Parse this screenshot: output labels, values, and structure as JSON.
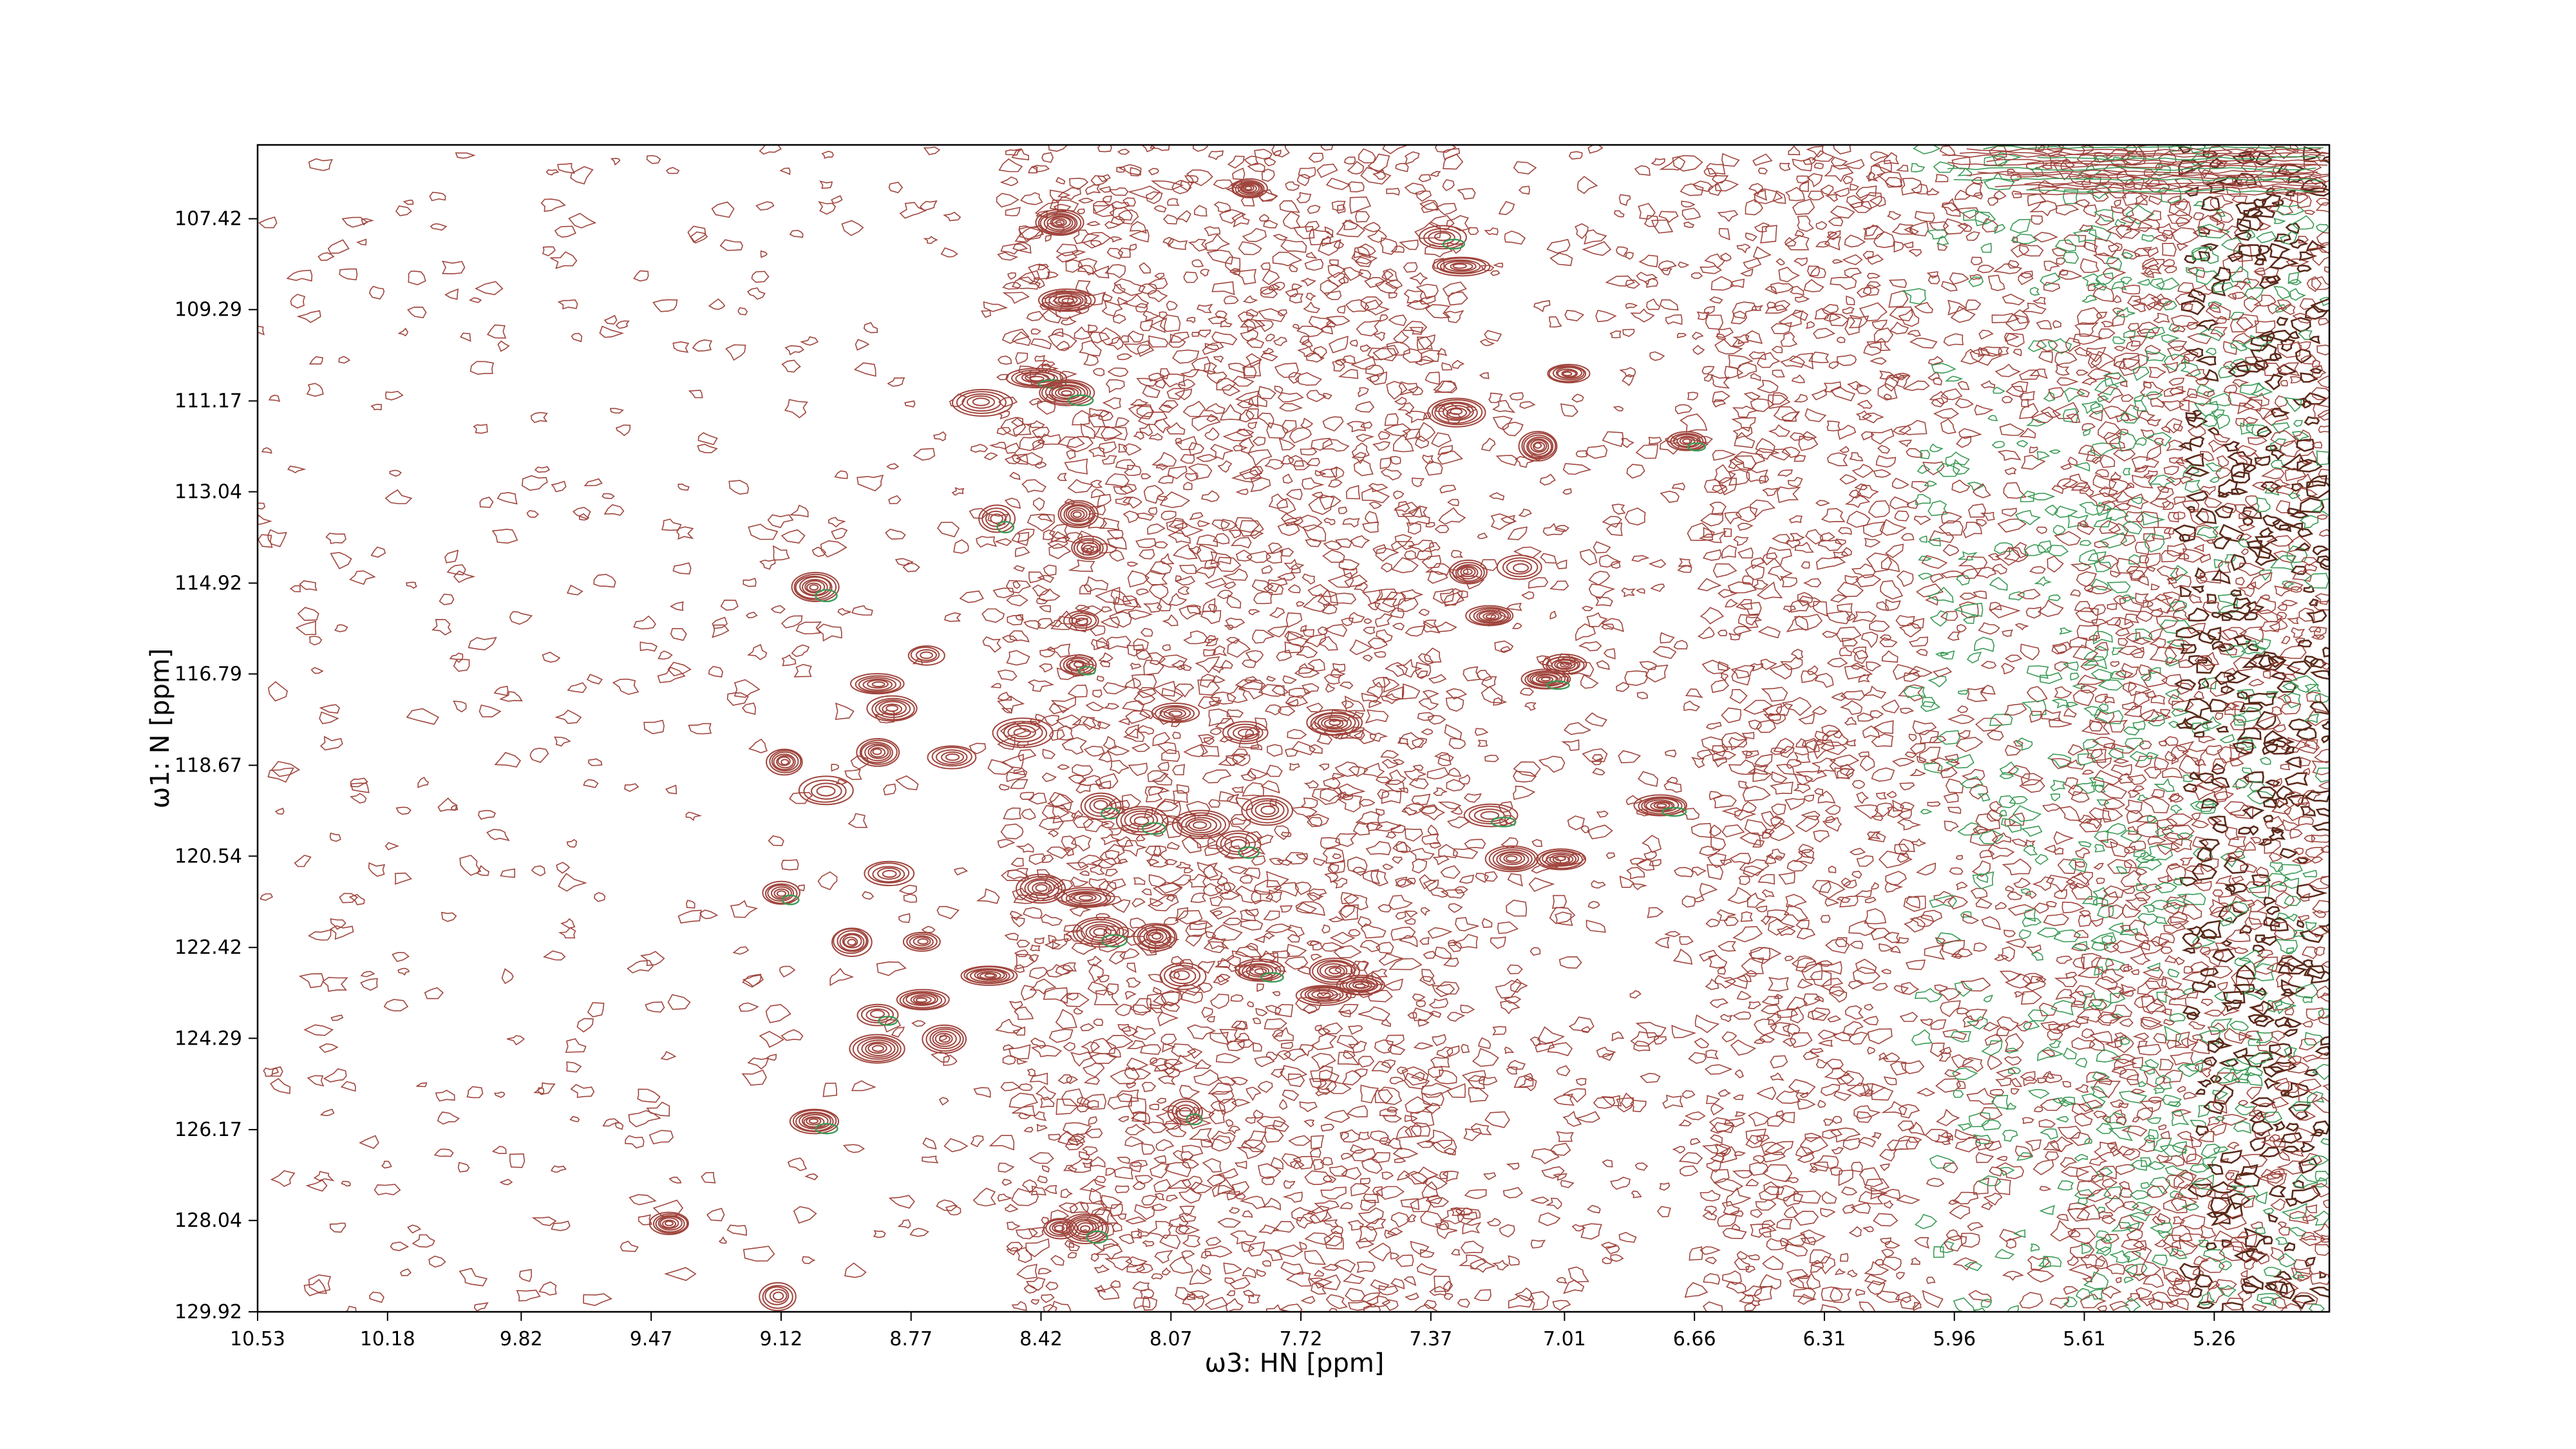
{
  "chart_data": {
    "type": "contour",
    "xlabel": "ω3: HN [ppm]",
    "ylabel": "ω1: N [ppm]",
    "xlim": [
      10.53,
      4.95
    ],
    "ylim": [
      105.9,
      129.92
    ],
    "x_ticks": [
      "10.53",
      "10.18",
      "9.82",
      "9.47",
      "9.12",
      "8.77",
      "8.42",
      "8.07",
      "7.72",
      "7.37",
      "7.01",
      "6.66",
      "6.31",
      "5.96",
      "5.61",
      "5.26"
    ],
    "y_ticks": [
      "107.42",
      "109.29",
      "111.17",
      "113.04",
      "114.92",
      "116.79",
      "118.67",
      "120.54",
      "122.42",
      "124.29",
      "126.17",
      "128.04",
      "129.92"
    ],
    "colors": {
      "positive": "#a0453d",
      "negative": "#3a9a55",
      "dark": "#5a2a1a"
    },
    "series": [
      {
        "name": "",
        "peaks": [
          {
            "x": 8.37,
            "y": 107.5
          },
          {
            "x": 7.86,
            "y": 106.8
          },
          {
            "x": 7.34,
            "y": 107.8
          },
          {
            "x": 7.29,
            "y": 108.4
          },
          {
            "x": 8.35,
            "y": 109.1
          },
          {
            "x": 8.43,
            "y": 110.7
          },
          {
            "x": 8.35,
            "y": 111.0
          },
          {
            "x": 7.3,
            "y": 111.4
          },
          {
            "x": 7.08,
            "y": 112.1
          },
          {
            "x": 7.0,
            "y": 110.6
          },
          {
            "x": 6.68,
            "y": 112.0
          },
          {
            "x": 8.58,
            "y": 111.2
          },
          {
            "x": 8.54,
            "y": 113.6
          },
          {
            "x": 8.32,
            "y": 113.5
          },
          {
            "x": 8.29,
            "y": 114.2
          },
          {
            "x": 7.27,
            "y": 114.7
          },
          {
            "x": 7.13,
            "y": 114.6
          },
          {
            "x": 7.21,
            "y": 115.6
          },
          {
            "x": 9.03,
            "y": 115.0
          },
          {
            "x": 8.31,
            "y": 115.7
          },
          {
            "x": 8.73,
            "y": 116.4
          },
          {
            "x": 8.32,
            "y": 116.6
          },
          {
            "x": 8.86,
            "y": 117.0
          },
          {
            "x": 8.82,
            "y": 117.5
          },
          {
            "x": 7.06,
            "y": 116.9
          },
          {
            "x": 7.01,
            "y": 116.6
          },
          {
            "x": 8.47,
            "y": 118.0
          },
          {
            "x": 8.06,
            "y": 117.6
          },
          {
            "x": 7.87,
            "y": 118.0
          },
          {
            "x": 7.63,
            "y": 117.8
          },
          {
            "x": 9.11,
            "y": 118.6
          },
          {
            "x": 8.86,
            "y": 118.4
          },
          {
            "x": 8.66,
            "y": 118.5
          },
          {
            "x": 9.0,
            "y": 119.2
          },
          {
            "x": 8.26,
            "y": 119.5
          },
          {
            "x": 8.15,
            "y": 119.8
          },
          {
            "x": 7.99,
            "y": 119.9
          },
          {
            "x": 7.89,
            "y": 120.3
          },
          {
            "x": 7.81,
            "y": 119.6
          },
          {
            "x": 7.21,
            "y": 119.7
          },
          {
            "x": 7.15,
            "y": 120.6
          },
          {
            "x": 7.02,
            "y": 120.6
          },
          {
            "x": 6.75,
            "y": 119.5
          },
          {
            "x": 8.83,
            "y": 120.9
          },
          {
            "x": 8.42,
            "y": 121.2
          },
          {
            "x": 8.3,
            "y": 121.4
          },
          {
            "x": 8.26,
            "y": 122.1
          },
          {
            "x": 8.11,
            "y": 122.2
          },
          {
            "x": 9.12,
            "y": 121.3
          },
          {
            "x": 8.93,
            "y": 122.3
          },
          {
            "x": 8.74,
            "y": 122.3
          },
          {
            "x": 8.56,
            "y": 123.0
          },
          {
            "x": 8.04,
            "y": 123.0
          },
          {
            "x": 7.83,
            "y": 122.9
          },
          {
            "x": 7.63,
            "y": 122.9
          },
          {
            "x": 7.56,
            "y": 123.2
          },
          {
            "x": 7.66,
            "y": 123.4
          },
          {
            "x": 8.86,
            "y": 123.8
          },
          {
            "x": 8.74,
            "y": 123.5
          },
          {
            "x": 8.68,
            "y": 124.3
          },
          {
            "x": 8.86,
            "y": 124.5
          },
          {
            "x": 8.03,
            "y": 125.8
          },
          {
            "x": 9.03,
            "y": 126.0
          },
          {
            "x": 8.37,
            "y": 128.2
          },
          {
            "x": 8.3,
            "y": 128.2
          },
          {
            "x": 9.42,
            "y": 128.1
          },
          {
            "x": 9.13,
            "y": 129.6
          }
        ]
      }
    ]
  }
}
